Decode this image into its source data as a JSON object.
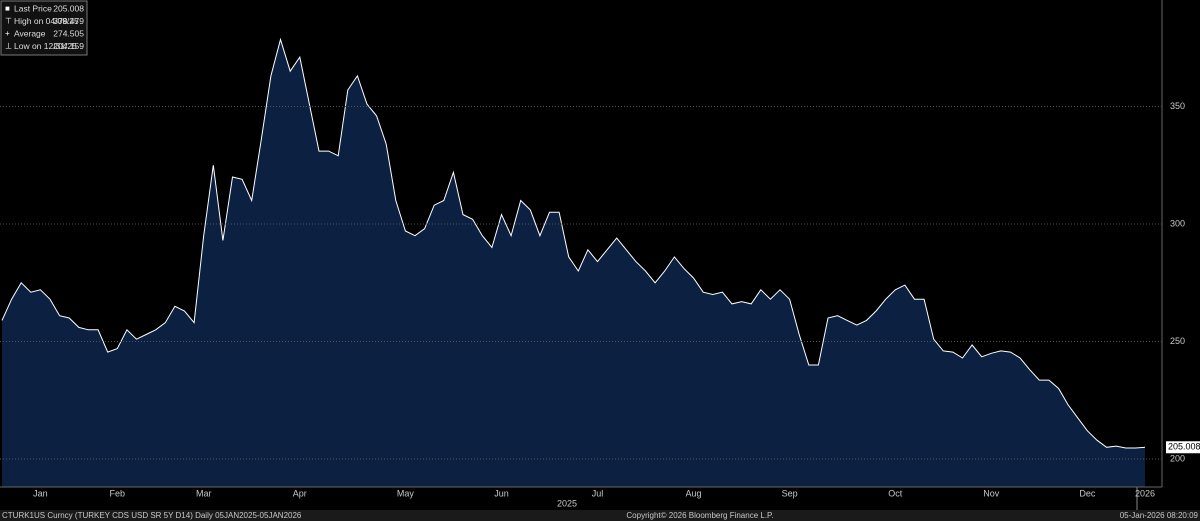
{
  "chart_data": {
    "type": "area",
    "subtitle": "CTURK1US Curncy (TURKEY CDS USD SR 5Y D14) Daily 05JAN2025-05JAN2026",
    "copyright": "Copyright© 2026 Bloomberg Finance L.P.",
    "timestamp": "05-Jan-2026 08:20:09",
    "year_label": "2025",
    "legend": [
      {
        "label": "Last Price",
        "value": 205.008
      },
      {
        "label": "High on 04/09/25",
        "value": 378.479
      },
      {
        "label": "Average",
        "value": 274.505
      },
      {
        "label": "Low on 12/31/25",
        "value": 204.159
      }
    ],
    "categories": [
      null,
      null,
      null,
      null,
      "Jan",
      null,
      null,
      null,
      null,
      null,
      null,
      null,
      "Feb",
      null,
      null,
      null,
      null,
      null,
      null,
      null,
      null,
      "Mar",
      null,
      null,
      null,
      null,
      null,
      null,
      null,
      null,
      null,
      "Apr",
      null,
      null,
      null,
      null,
      null,
      null,
      null,
      null,
      null,
      null,
      "May",
      null,
      null,
      null,
      null,
      null,
      null,
      null,
      null,
      null,
      "Jun",
      null,
      null,
      null,
      null,
      null,
      null,
      null,
      null,
      null,
      "Jul",
      null,
      null,
      null,
      null,
      null,
      null,
      null,
      null,
      null,
      "Aug",
      null,
      null,
      null,
      null,
      null,
      null,
      null,
      null,
      null,
      "Sep",
      null,
      null,
      null,
      null,
      null,
      null,
      null,
      null,
      null,
      null,
      "Oct",
      null,
      null,
      null,
      null,
      null,
      null,
      null,
      null,
      null,
      "Nov",
      null,
      null,
      null,
      null,
      null,
      null,
      null,
      null,
      null,
      "Dec",
      null,
      null,
      null,
      null,
      null,
      "2026"
    ],
    "series": [
      {
        "name": "Last Price",
        "color": "#ffffff",
        "fill": "#0c2142",
        "values": [
          259,
          268,
          275,
          271,
          272,
          268,
          261,
          260,
          256,
          255,
          255,
          245.5,
          247,
          255,
          251,
          253,
          255,
          258,
          265,
          263,
          258,
          295,
          325,
          293,
          320,
          319,
          310,
          336,
          363,
          378.5,
          365,
          371,
          351,
          331,
          331,
          329,
          357,
          363,
          351,
          346,
          334,
          310,
          297,
          295,
          298,
          308,
          310,
          322,
          304,
          302,
          295,
          290,
          304,
          295,
          310,
          306,
          295,
          305,
          305,
          286,
          280,
          289,
          284,
          289,
          294,
          289,
          284,
          280,
          275,
          280,
          286,
          281,
          277,
          271,
          270,
          271,
          266,
          267,
          266,
          272,
          268,
          272,
          268,
          253,
          240,
          240,
          260,
          261,
          259,
          257,
          259,
          263,
          268,
          272,
          274,
          268,
          268,
          251,
          246,
          245.5,
          243,
          248.5,
          243.5,
          245,
          246,
          245.5,
          243,
          238,
          233.6,
          233.6,
          230,
          223,
          217.5,
          212,
          208,
          205,
          205.5,
          204.7,
          204.7,
          205
        ]
      }
    ],
    "ylim": [
      188.1,
      395.3
    ],
    "yticks": [
      200,
      250,
      300,
      350
    ],
    "grid": true
  }
}
